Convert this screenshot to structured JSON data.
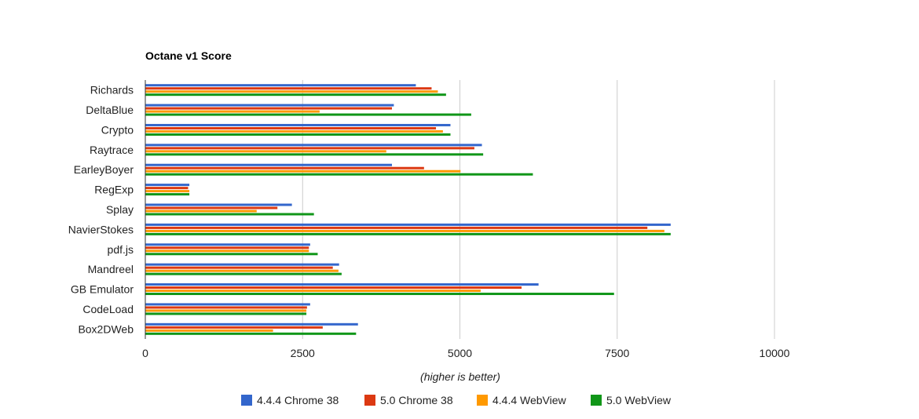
{
  "chart_data": {
    "type": "bar",
    "orientation": "horizontal",
    "title": "Octane v1 Score",
    "xlabel": "(higher is better)",
    "ylabel": "",
    "xlim": [
      0,
      10000
    ],
    "xticks": [
      0,
      2500,
      5000,
      7500,
      10000
    ],
    "grid": true,
    "legend_position": "bottom",
    "categories": [
      "Richards",
      "DeltaBlue",
      "Crypto",
      "Raytrace",
      "EarleyBoyer",
      "RegExp",
      "Splay",
      "NavierStokes",
      "pdf.js",
      "Mandreel",
      "GB Emulator",
      "CodeLoad",
      "Box2DWeb"
    ],
    "series": [
      {
        "name": "4.4.4 Chrome 38",
        "color": "#3366cc",
        "values": [
          4300,
          3950,
          4850,
          5350,
          3920,
          700,
          2330,
          8350,
          2620,
          3080,
          6250,
          2620,
          3380
        ]
      },
      {
        "name": "5.0 Chrome 38",
        "color": "#dc3912",
        "values": [
          4550,
          3920,
          4620,
          5230,
          4430,
          680,
          2100,
          7980,
          2600,
          2980,
          5980,
          2570,
          2820
        ]
      },
      {
        "name": "4.4.4 WebView",
        "color": "#ff9900",
        "values": [
          4650,
          2770,
          4730,
          3830,
          5010,
          700,
          1770,
          8250,
          2600,
          3070,
          5330,
          2560,
          2030
        ]
      },
      {
        "name": "5.0 WebView",
        "color": "#109618",
        "values": [
          4780,
          5180,
          4850,
          5370,
          6160,
          700,
          2680,
          8350,
          2740,
          3120,
          7450,
          2560,
          3350
        ]
      }
    ]
  }
}
